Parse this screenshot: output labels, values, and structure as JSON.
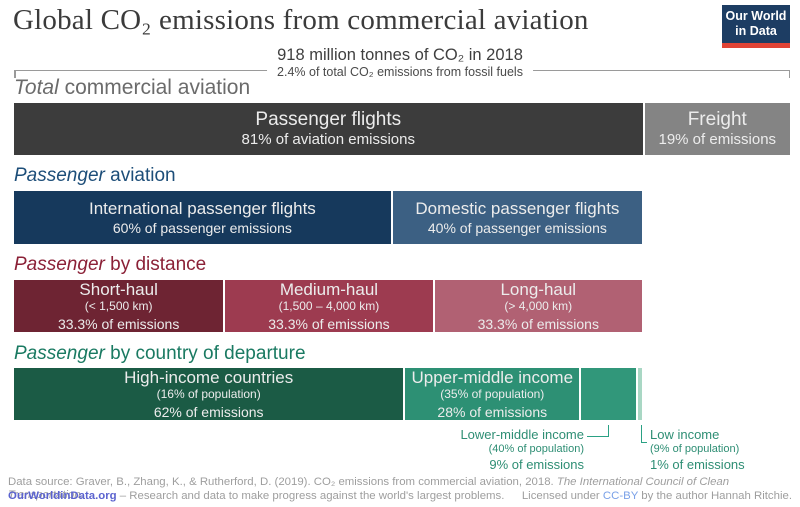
{
  "title": "Global CO₂ emissions from commercial aviation",
  "logo": {
    "line1": "Our World",
    "line2": "in Data"
  },
  "bracket": {
    "line1": "918 million tonnes of CO₂ in 2018",
    "line2": "2.4% of total CO₂ emissions from fossil fuels"
  },
  "sections": [
    {
      "id": "total",
      "heading_italic": "Total",
      "heading_rest": " commercial aviation",
      "heading_color": "#6b6b6b",
      "segments": [
        {
          "name": "passenger-flights",
          "width_pct": 81,
          "color": "#3c3c3c",
          "lines": [
            "Passenger flights",
            "81% of aviation emissions"
          ]
        },
        {
          "name": "freight",
          "width_pct": 19,
          "color": "#848484",
          "lines": [
            "Freight",
            "19% of emissions"
          ]
        }
      ]
    },
    {
      "id": "aviation",
      "heading_italic": "Passenger",
      "heading_rest": " aviation",
      "heading_color": "#1d4e79",
      "segments": [
        {
          "name": "international-passenger",
          "width_pct": 60,
          "color": "#16395c",
          "lines": [
            "International passenger flights",
            "60% of passenger emissions"
          ]
        },
        {
          "name": "domestic-passenger",
          "width_pct": 40,
          "color": "#3c6083",
          "lines": [
            "Domestic passenger flights",
            "40% of passenger emissions"
          ]
        }
      ]
    },
    {
      "id": "distance",
      "heading_italic": "Passenger",
      "heading_rest": " by distance",
      "heading_color": "#8b2137",
      "segments": [
        {
          "name": "short-haul",
          "width_pct": 33.33,
          "color": "#6e2433",
          "lines": [
            "Short-haul",
            "(< 1,500 km)",
            "33.3% of emissions"
          ]
        },
        {
          "name": "medium-haul",
          "width_pct": 33.33,
          "color": "#9d3b50",
          "lines": [
            "Medium-haul",
            "(1,500 – 4,000 km)",
            "33.3% of emissions"
          ]
        },
        {
          "name": "long-haul",
          "width_pct": 33.34,
          "color": "#b16173",
          "lines": [
            "Long-haul",
            "(> 4,000 km)",
            "33.3% of emissions"
          ]
        }
      ]
    },
    {
      "id": "country",
      "heading_italic": "Passenger",
      "heading_rest": " by country of departure",
      "heading_color": "#1a7a62",
      "segments": [
        {
          "name": "high-income",
          "width_pct": 62,
          "color": "#1b5b45",
          "lines": [
            "High-income countries",
            "(16% of population)",
            "62% of emissions"
          ]
        },
        {
          "name": "upper-middle-income",
          "width_pct": 28,
          "color": "#2d9074",
          "lines": [
            "Upper-middle income",
            "(35% of population)",
            "28% of emissions"
          ]
        },
        {
          "name": "lower-middle-income",
          "width_pct": 9,
          "color": "#31977a",
          "lines": []
        },
        {
          "name": "low-income",
          "width_pct": 1,
          "color": "#a9d7c4",
          "lines": []
        }
      ]
    }
  ],
  "annotations": [
    {
      "id": "lower",
      "name": "lower-middle-income",
      "lines": [
        "Lower-middle income",
        "(40% of population)",
        "9% of emissions"
      ]
    },
    {
      "id": "low",
      "name": "low-income",
      "lines": [
        "Low income",
        "(9% of population)",
        "1% of emissions"
      ]
    }
  ],
  "footer": {
    "line1_prefix": "Data source: Graver, B., Zhang, K., & Rutherford, D. (2019). CO₂ emissions from commercial aviation, 2018. ",
    "line1_italic": "The International Council of Clean Transportation.",
    "line2_link": "OurWorldinData.org",
    "line2_rest": " – Research and data to make progress against the world's largest problems.",
    "license_prefix": "Licensed under ",
    "license_link": "CC-BY",
    "license_suffix": " by the author Hannah Ritchie."
  },
  "colors": {
    "brand_navy": "#1d3d63",
    "brand_red": "#e04335",
    "annotation_green": "#2e8e74",
    "bracket_gray": "#9a9a9a"
  },
  "chart_data": {
    "type": "bar",
    "title": "Global CO₂ emissions from commercial aviation",
    "subtitle": "918 million tonnes of CO₂ in 2018",
    "note": "2.4% of total CO₂ emissions from fossil fuels",
    "legend_position": "none",
    "bars": [
      {
        "category": "Total commercial aviation",
        "unit": "% of aviation emissions",
        "segments": [
          {
            "label": "Passenger flights",
            "value": 81
          },
          {
            "label": "Freight",
            "value": 19
          }
        ]
      },
      {
        "category": "Passenger aviation",
        "unit": "% of passenger emissions",
        "segments": [
          {
            "label": "International passenger flights",
            "value": 60
          },
          {
            "label": "Domestic passenger flights",
            "value": 40
          }
        ]
      },
      {
        "category": "Passenger by distance",
        "unit": "% of passenger emissions",
        "segments": [
          {
            "label": "Short-haul (< 1,500 km)",
            "value": 33.3
          },
          {
            "label": "Medium-haul (1,500 – 4,000 km)",
            "value": 33.3
          },
          {
            "label": "Long-haul (> 4,000 km)",
            "value": 33.3
          }
        ]
      },
      {
        "category": "Passenger by country of departure",
        "unit": "% of passenger emissions",
        "segments": [
          {
            "label": "High-income countries (16% of population)",
            "value": 62
          },
          {
            "label": "Upper-middle income (35% of population)",
            "value": 28
          },
          {
            "label": "Lower-middle income (40% of population)",
            "value": 9
          },
          {
            "label": "Low income (9% of population)",
            "value": 1
          }
        ]
      }
    ]
  }
}
